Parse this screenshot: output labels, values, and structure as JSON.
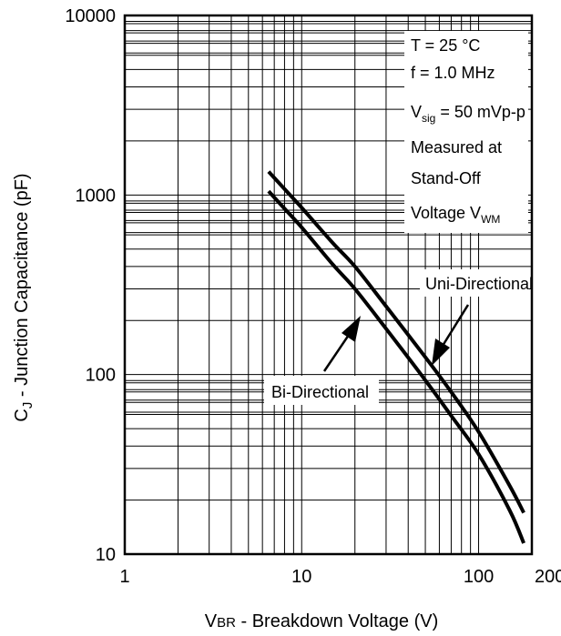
{
  "chart_data": {
    "type": "line",
    "title": "",
    "x_scale": "log",
    "y_scale": "log",
    "xlim": [
      1,
      200
    ],
    "ylim": [
      10,
      10000
    ],
    "x_ticks": [
      "1",
      "10",
      "100",
      "200"
    ],
    "y_ticks": [
      "10",
      "100",
      "1000",
      "10000"
    ],
    "grid": true,
    "xlabel": {
      "main": "V",
      "sub": "BR",
      "rest": " - Breakdown Voltage (V)"
    },
    "ylabel": {
      "main": "C",
      "sub": "J",
      "rest": " - Junction Capacitance (pF)"
    },
    "series": [
      {
        "name": "Uni-Directional",
        "x": [
          6.5,
          8,
          10,
          15,
          20,
          30,
          50,
          70,
          100,
          150,
          180
        ],
        "y": [
          1350,
          1080,
          850,
          540,
          400,
          240,
          125,
          80,
          48,
          24,
          17
        ]
      },
      {
        "name": "Bi-Directional",
        "x": [
          6.5,
          8,
          10,
          15,
          20,
          30,
          50,
          70,
          100,
          150,
          180
        ],
        "y": [
          1050,
          840,
          660,
          410,
          300,
          180,
          93,
          59,
          36,
          17.5,
          11.5
        ]
      }
    ],
    "conditions": {
      "temp": "T  = 25 °C",
      "freq": "f = 1.0 MHz",
      "vsig_main": "V",
      "vsig_sub": "sig",
      "vsig_rest": " = 50 mVp-p",
      "measured": "Measured at",
      "standoff": "Stand-Off",
      "voltage_main": "Voltage V",
      "voltage_sub": "WM"
    }
  }
}
